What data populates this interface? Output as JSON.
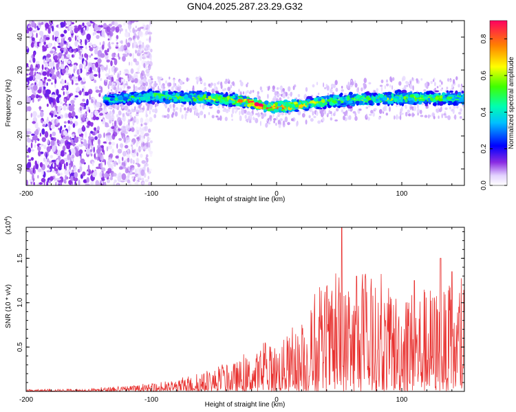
{
  "title": "GN04.2025.287.23.29.G32",
  "colors": {
    "snr_line": "#e8312f",
    "trace_core": "#22c1d8",
    "scatter": "#8a2be2",
    "peak": "#ff2a00"
  },
  "chart_data": [
    {
      "type": "heatmap",
      "title": "GN04.2025.287.23.29.G32",
      "xlabel": "Height of straight line (km)",
      "ylabel": "Frequency (Hz)",
      "xlim": [
        -200,
        150
      ],
      "ylim": [
        -50,
        50
      ],
      "x_ticks": [
        "-200",
        "-100",
        "0",
        "100"
      ],
      "x_tick_values": [
        -200,
        -100,
        0,
        100
      ],
      "y_ticks": [
        "40",
        "20",
        "0",
        "-20",
        "-40"
      ],
      "y_tick_values": [
        40,
        20,
        0,
        -20,
        -40
      ],
      "colorbar": {
        "label": "Normalized spectral amplitude",
        "range": [
          0.0,
          0.9
        ],
        "ticks": [
          "0.0",
          "0.2",
          "0.4",
          "0.6",
          "0.8"
        ],
        "tick_values": [
          0.0,
          0.2,
          0.4,
          0.6,
          0.8
        ]
      },
      "trace": {
        "x": [
          -135,
          -120,
          -100,
          -80,
          -60,
          -40,
          -30,
          -20,
          -10,
          0,
          10,
          20,
          30,
          40,
          60,
          80,
          100,
          120,
          150
        ],
        "center_hz": [
          2,
          3,
          4,
          3.5,
          3,
          2,
          1.5,
          0,
          -2,
          -2.5,
          -2,
          -1,
          0,
          1,
          2,
          2.5,
          3,
          3,
          3
        ],
        "halfwidth_hz": [
          3,
          3,
          3.5,
          3.5,
          3.5,
          3.5,
          3.5,
          3,
          3,
          3,
          3,
          3,
          3,
          3.5,
          3.5,
          3.5,
          3.5,
          3.5,
          3.5
        ],
        "strength": [
          0.35,
          0.4,
          0.45,
          0.45,
          0.5,
          0.5,
          0.6,
          0.75,
          0.8,
          0.75,
          0.7,
          0.65,
          0.55,
          0.45,
          0.45,
          0.45,
          0.45,
          0.45,
          0.4
        ]
      },
      "noise_region_x": [
        -200,
        -110
      ]
    },
    {
      "type": "line",
      "xlabel": "Height of straight line (km)",
      "ylabel": "SNR (10 * v/v)",
      "y_multiplier": "(x10",
      "y_multiplier_exp": "4",
      "y_multiplier_close": ")",
      "xlim": [
        -200,
        150
      ],
      "ylim": [
        0,
        1.85
      ],
      "x_ticks": [
        "-200",
        "-100",
        "0",
        "100"
      ],
      "x_tick_values": [
        -200,
        -100,
        0,
        100
      ],
      "y_ticks": [
        "0.5",
        "1.0",
        "1.5"
      ],
      "y_tick_values": [
        0.5,
        1.0,
        1.5
      ],
      "envelope": {
        "x": [
          -200,
          -150,
          -120,
          -100,
          -80,
          -60,
          -40,
          -20,
          -10,
          0,
          20,
          30,
          50,
          80,
          100,
          120,
          150
        ],
        "max": [
          0.02,
          0.03,
          0.06,
          0.08,
          0.12,
          0.2,
          0.3,
          0.4,
          0.5,
          0.55,
          0.7,
          1.0,
          1.2,
          1.2,
          1.15,
          1.2,
          1.1
        ]
      },
      "peaks": [
        {
          "x": 52,
          "y": 1.85
        },
        {
          "x": 131,
          "y": 1.5
        },
        {
          "x": 140,
          "y": 1.35
        },
        {
          "x": 64,
          "y": 1.3
        },
        {
          "x": 110,
          "y": 1.25
        }
      ]
    }
  ]
}
